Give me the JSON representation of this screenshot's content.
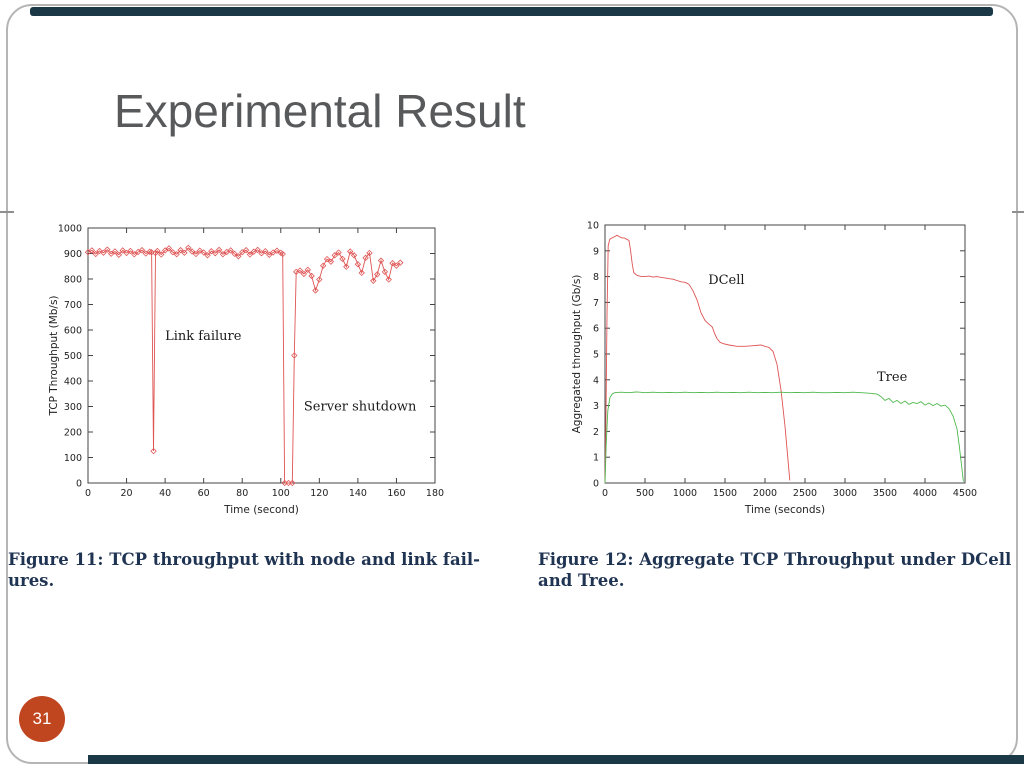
{
  "slide": {
    "title": "Experimental Result",
    "page_number": "31",
    "captions": {
      "fig11": "Figure 11: TCP throughput with node and link fail-\nures.",
      "fig12": "Figure 12: Aggregate TCP Throughput under DCell\nand Tree."
    },
    "colors": {
      "accent_bar": "#1a3845",
      "page_circle": "#c0461f",
      "title_gray": "#58595b",
      "caption_navy": "#1f3352",
      "series_red": "#df5353",
      "series_green": "#4db84d"
    }
  },
  "chart_data": [
    {
      "type": "line",
      "title": "",
      "xlabel": "Time (second)",
      "ylabel": "TCP Throughput (Mb/s)",
      "xlim": [
        0,
        180
      ],
      "ylim": [
        0,
        1000
      ],
      "xticks": [
        0,
        20,
        40,
        60,
        80,
        100,
        120,
        140,
        160,
        180
      ],
      "yticks": [
        0,
        100,
        200,
        300,
        400,
        500,
        600,
        700,
        800,
        900,
        1000
      ],
      "grid": false,
      "legend": "none",
      "series": [
        {
          "name": "TCP throughput",
          "color": "#df5353",
          "marker": "diamond",
          "points": [
            [
              0,
              905
            ],
            [
              2,
              912
            ],
            [
              4,
              898
            ],
            [
              6,
              910
            ],
            [
              8,
              903
            ],
            [
              10,
              915
            ],
            [
              12,
              899
            ],
            [
              14,
              908
            ],
            [
              16,
              895
            ],
            [
              18,
              912
            ],
            [
              20,
              902
            ],
            [
              22,
              910
            ],
            [
              24,
              897
            ],
            [
              26,
              906
            ],
            [
              28,
              913
            ],
            [
              30,
              900
            ],
            [
              32,
              907
            ],
            [
              33,
              905
            ],
            [
              34,
              125
            ],
            [
              35,
              902
            ],
            [
              36,
              910
            ],
            [
              38,
              896
            ],
            [
              40,
              912
            ],
            [
              42,
              920
            ],
            [
              44,
              905
            ],
            [
              46,
              897
            ],
            [
              48,
              913
            ],
            [
              50,
              903
            ],
            [
              52,
              922
            ],
            [
              54,
              908
            ],
            [
              56,
              898
            ],
            [
              58,
              911
            ],
            [
              60,
              904
            ],
            [
              62,
              893
            ],
            [
              64,
              909
            ],
            [
              66,
              901
            ],
            [
              68,
              914
            ],
            [
              70,
              897
            ],
            [
              72,
              906
            ],
            [
              74,
              912
            ],
            [
              76,
              899
            ],
            [
              78,
              889
            ],
            [
              80,
              905
            ],
            [
              82,
              913
            ],
            [
              84,
              896
            ],
            [
              86,
              907
            ],
            [
              88,
              914
            ],
            [
              90,
              901
            ],
            [
              92,
              909
            ],
            [
              94,
              895
            ],
            [
              96,
              904
            ],
            [
              98,
              911
            ],
            [
              100,
              903
            ],
            [
              101,
              898
            ],
            [
              102,
              0
            ],
            [
              104,
              0
            ],
            [
              106,
              0
            ],
            [
              107,
              500
            ],
            [
              108,
              828
            ],
            [
              110,
              833
            ],
            [
              112,
              820
            ],
            [
              114,
              836
            ],
            [
              116,
              812
            ],
            [
              118,
              755
            ],
            [
              120,
              798
            ],
            [
              122,
              852
            ],
            [
              124,
              878
            ],
            [
              126,
              868
            ],
            [
              128,
              893
            ],
            [
              130,
              904
            ],
            [
              132,
              879
            ],
            [
              134,
              848
            ],
            [
              136,
              908
            ],
            [
              138,
              893
            ],
            [
              140,
              858
            ],
            [
              142,
              824
            ],
            [
              144,
              883
            ],
            [
              146,
              902
            ],
            [
              148,
              793
            ],
            [
              150,
              818
            ],
            [
              152,
              872
            ],
            [
              154,
              828
            ],
            [
              156,
              798
            ],
            [
              158,
              862
            ],
            [
              160,
              852
            ],
            [
              162,
              864
            ]
          ]
        }
      ],
      "annotations": [
        {
          "text": "Link failure",
          "x": 40,
          "y": 560
        },
        {
          "text": "Server shutdown",
          "x": 112,
          "y": 285
        }
      ]
    },
    {
      "type": "line",
      "title": "",
      "xlabel": "Time (seconds)",
      "ylabel": "Aggregated throughput (Gb/s)",
      "xlim": [
        0,
        4500
      ],
      "ylim": [
        0,
        10
      ],
      "xticks": [
        0,
        500,
        1000,
        1500,
        2000,
        2500,
        3000,
        3500,
        4000,
        4500
      ],
      "yticks": [
        0,
        1,
        2,
        3,
        4,
        5,
        6,
        7,
        8,
        9,
        10
      ],
      "grid": false,
      "legend": "inline-annotations",
      "series": [
        {
          "name": "DCell",
          "color": "#df5353",
          "marker": "none",
          "points": [
            [
              0,
              0
            ],
            [
              10,
              2
            ],
            [
              25,
              6.5
            ],
            [
              40,
              9.2
            ],
            [
              60,
              9.45
            ],
            [
              90,
              9.5
            ],
            [
              120,
              9.55
            ],
            [
              150,
              9.6
            ],
            [
              180,
              9.55
            ],
            [
              210,
              9.5
            ],
            [
              240,
              9.5
            ],
            [
              270,
              9.45
            ],
            [
              300,
              9.4
            ],
            [
              320,
              9.0
            ],
            [
              340,
              8.5
            ],
            [
              360,
              8.15
            ],
            [
              400,
              8.05
            ],
            [
              450,
              8.0
            ],
            [
              500,
              8.0
            ],
            [
              550,
              8.02
            ],
            [
              600,
              7.98
            ],
            [
              650,
              8.0
            ],
            [
              700,
              7.97
            ],
            [
              750,
              7.95
            ],
            [
              800,
              7.92
            ],
            [
              850,
              7.9
            ],
            [
              900,
              7.85
            ],
            [
              950,
              7.8
            ],
            [
              1000,
              7.78
            ],
            [
              1050,
              7.7
            ],
            [
              1100,
              7.45
            ],
            [
              1150,
              7.1
            ],
            [
              1200,
              6.6
            ],
            [
              1250,
              6.3
            ],
            [
              1300,
              6.15
            ],
            [
              1340,
              6.05
            ],
            [
              1370,
              5.8
            ],
            [
              1400,
              5.6
            ],
            [
              1440,
              5.45
            ],
            [
              1480,
              5.4
            ],
            [
              1550,
              5.35
            ],
            [
              1650,
              5.3
            ],
            [
              1750,
              5.3
            ],
            [
              1850,
              5.32
            ],
            [
              1950,
              5.35
            ],
            [
              2000,
              5.3
            ],
            [
              2050,
              5.25
            ],
            [
              2100,
              5.1
            ],
            [
              2150,
              4.6
            ],
            [
              2200,
              3.6
            ],
            [
              2250,
              2.2
            ],
            [
              2290,
              0.8
            ],
            [
              2310,
              0.1
            ]
          ]
        },
        {
          "name": "Tree",
          "color": "#4db84d",
          "marker": "none",
          "points": [
            [
              0,
              0
            ],
            [
              15,
              1.5
            ],
            [
              35,
              2.8
            ],
            [
              60,
              3.3
            ],
            [
              90,
              3.45
            ],
            [
              120,
              3.5
            ],
            [
              200,
              3.52
            ],
            [
              300,
              3.5
            ],
            [
              400,
              3.53
            ],
            [
              500,
              3.5
            ],
            [
              600,
              3.52
            ],
            [
              700,
              3.5
            ],
            [
              800,
              3.51
            ],
            [
              900,
              3.5
            ],
            [
              1000,
              3.52
            ],
            [
              1100,
              3.5
            ],
            [
              1200,
              3.51
            ],
            [
              1300,
              3.5
            ],
            [
              1400,
              3.52
            ],
            [
              1500,
              3.5
            ],
            [
              1600,
              3.51
            ],
            [
              1700,
              3.5
            ],
            [
              1800,
              3.52
            ],
            [
              1900,
              3.5
            ],
            [
              2000,
              3.51
            ],
            [
              2100,
              3.5
            ],
            [
              2200,
              3.52
            ],
            [
              2300,
              3.5
            ],
            [
              2400,
              3.51
            ],
            [
              2500,
              3.5
            ],
            [
              2600,
              3.52
            ],
            [
              2700,
              3.5
            ],
            [
              2800,
              3.5
            ],
            [
              2900,
              3.51
            ],
            [
              3000,
              3.5
            ],
            [
              3100,
              3.52
            ],
            [
              3200,
              3.5
            ],
            [
              3300,
              3.48
            ],
            [
              3400,
              3.45
            ],
            [
              3450,
              3.35
            ],
            [
              3500,
              3.2
            ],
            [
              3550,
              3.28
            ],
            [
              3600,
              3.12
            ],
            [
              3650,
              3.2
            ],
            [
              3700,
              3.08
            ],
            [
              3750,
              3.18
            ],
            [
              3800,
              3.05
            ],
            [
              3850,
              3.12
            ],
            [
              3900,
              3.08
            ],
            [
              3950,
              3.15
            ],
            [
              4000,
              3.02
            ],
            [
              4050,
              3.1
            ],
            [
              4100,
              3.0
            ],
            [
              4150,
              3.08
            ],
            [
              4200,
              2.98
            ],
            [
              4250,
              3.02
            ],
            [
              4300,
              2.88
            ],
            [
              4350,
              2.6
            ],
            [
              4400,
              2.1
            ],
            [
              4430,
              1.4
            ],
            [
              4460,
              0.6
            ],
            [
              4480,
              0.05
            ]
          ]
        }
      ],
      "annotations": [
        {
          "text": "DCell",
          "x": 1290,
          "y": 7.72
        },
        {
          "text": "Tree",
          "x": 3400,
          "y": 3.95
        }
      ]
    }
  ]
}
